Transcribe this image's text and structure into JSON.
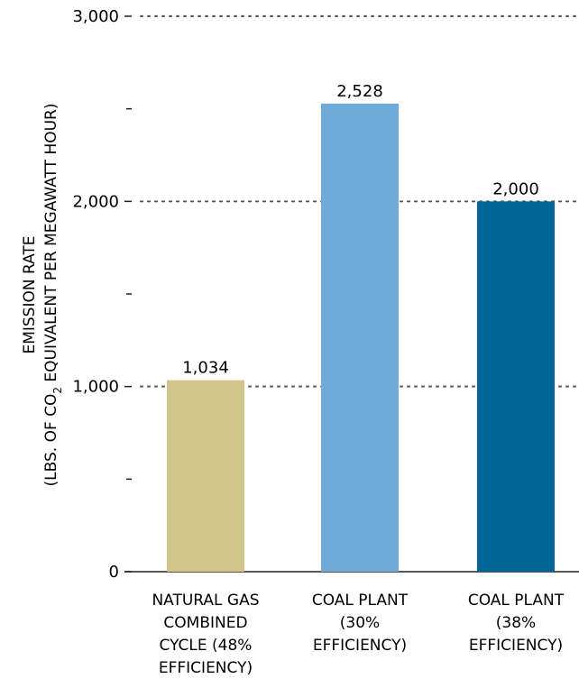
{
  "chart_data": {
    "type": "bar",
    "categories": [
      [
        "NATURAL GAS",
        "COMBINED",
        "CYCLE (48%",
        "EFFICIENCY)"
      ],
      [
        "COAL PLANT",
        "(30%",
        "EFFICIENCY)"
      ],
      [
        "COAL PLANT",
        "(38%",
        "EFFICIENCY)"
      ]
    ],
    "values": [
      1034,
      2528,
      2000
    ],
    "value_labels": [
      "1,034",
      "2,528",
      "2,000"
    ],
    "colors": [
      "#d3c48c",
      "#6fabd8",
      "#006699"
    ],
    "ylabel": {
      "line1": "EMISSION RATE",
      "line2_pre": "(LBS. OF CO",
      "line2_sub": "2",
      "line2_post": " EQUIVALENT PER MEGAWATT HOUR)"
    },
    "ylim": [
      0,
      3000
    ],
    "yticks": [
      {
        "value": 0,
        "label": "0"
      },
      {
        "value": 1000,
        "label": "1,000"
      },
      {
        "value": 2000,
        "label": "2,000"
      },
      {
        "value": 3000,
        "label": "3,000"
      }
    ],
    "minor_ticks": [
      500,
      1500,
      2500
    ],
    "gridlines": [
      1000,
      2000,
      3000
    ],
    "grid_style": "dotted"
  }
}
